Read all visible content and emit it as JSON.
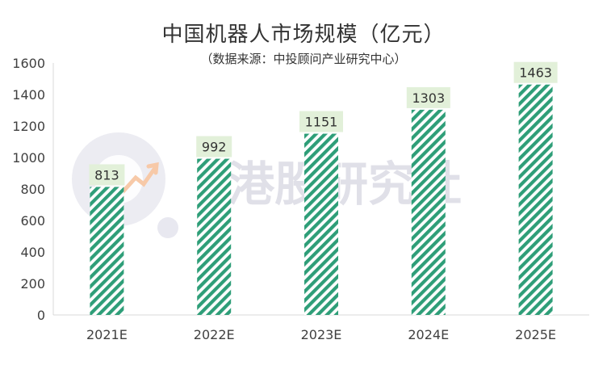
{
  "chart_data": {
    "type": "bar",
    "title": "中国机器人市场规模（亿元）",
    "subtitle": "（数据来源：中投顾问产业研究中心）",
    "categories": [
      "2021E",
      "2022E",
      "2023E",
      "2024E",
      "2025E"
    ],
    "values": [
      813,
      992,
      1151,
      1303,
      1463
    ],
    "ylim": [
      0,
      1600
    ],
    "yticks": [
      0,
      200,
      400,
      600,
      800,
      1000,
      1200,
      1400,
      1600
    ],
    "grid": false,
    "legend": "none",
    "bar_color": "#2e9e78",
    "label_bg_color": "#e2f0d9"
  },
  "watermark": {
    "text": "港股研究社",
    "color": "#d9d9e3",
    "icon": "magnifier-logo-icon"
  }
}
